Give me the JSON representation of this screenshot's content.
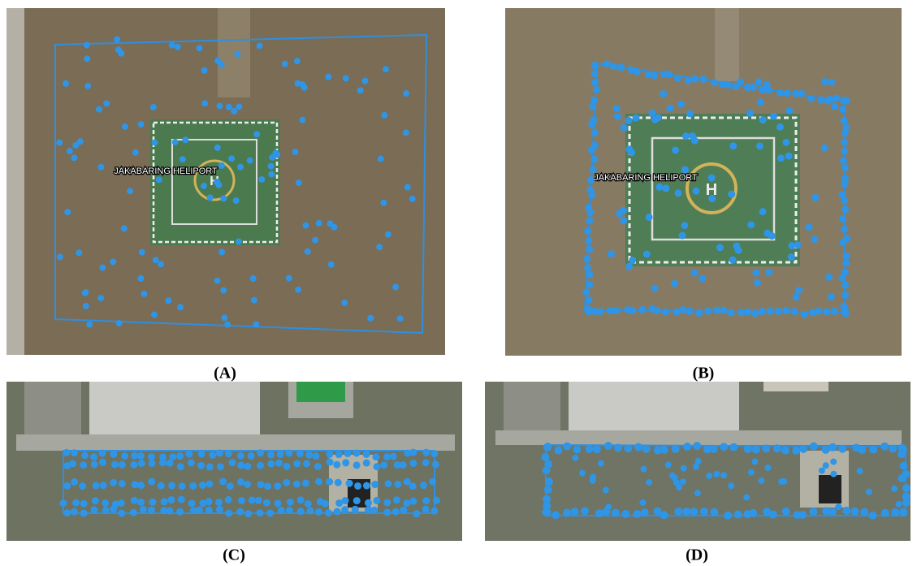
{
  "panels": [
    {
      "caption": "(A)",
      "map_label": "JAKABARING HELIPORT"
    },
    {
      "caption": "(B)",
      "map_label": "JAKABARING HELIPORT"
    },
    {
      "caption": "(C)"
    },
    {
      "caption": "(D)"
    }
  ]
}
